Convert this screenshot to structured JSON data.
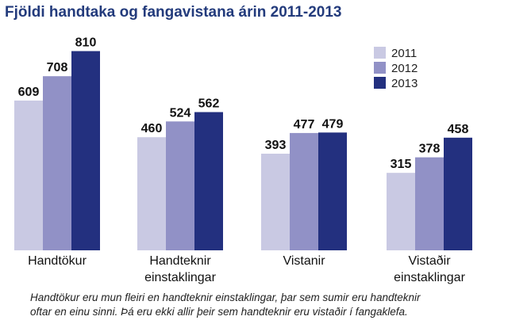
{
  "colors": {
    "title": "#233b7c",
    "series": [
      "#c9c9e3",
      "#9191c6",
      "#23307f"
    ]
  },
  "chart_data": {
    "type": "bar",
    "title": "Fjöldi handtaka og fangavistana árin 2011-2013",
    "categories": [
      [
        "Handtökur"
      ],
      [
        "Handteknir",
        "einstaklingar"
      ],
      [
        "Vistanir"
      ],
      [
        "Vistaðir",
        "einstaklingar"
      ]
    ],
    "series": [
      {
        "name": "2011",
        "values": [
          609,
          460,
          393,
          315
        ]
      },
      {
        "name": "2012",
        "values": [
          708,
          524,
          477,
          378
        ]
      },
      {
        "name": "2013",
        "values": [
          810,
          562,
          479,
          458
        ]
      }
    ],
    "legend_position": "top-right",
    "grid": false
  },
  "caption": {
    "line1": "Handtökur eru mun fleiri en handteknir einstaklingar, þar sem sumir eru handteknir",
    "line2": "oftar en einu sinni. Þá eru ekki allir þeir sem handteknir eru vistaðir í fangaklefa."
  }
}
